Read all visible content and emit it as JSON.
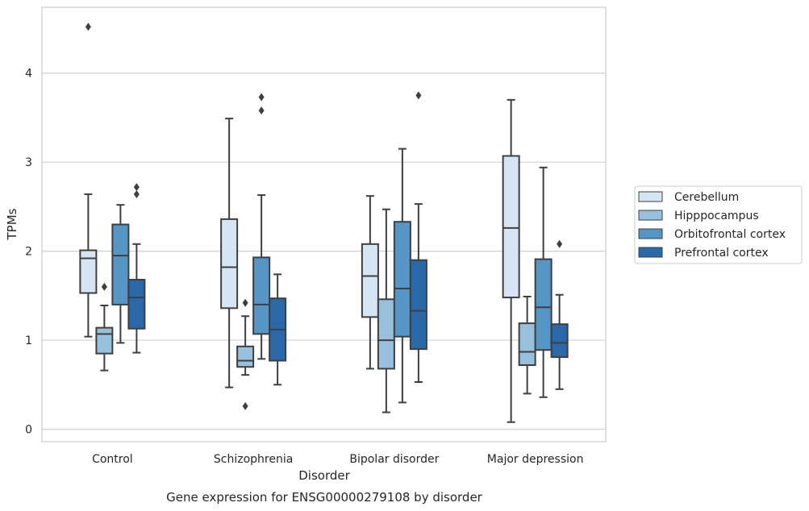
{
  "chart_data": {
    "type": "boxplot",
    "caption": "Gene expression for ENSG00000279108 by disorder",
    "xlabel": "Disorder",
    "ylabel": "TPMs",
    "ylim": [
      -0.14,
      4.74
    ],
    "yticks": [
      0,
      1,
      2,
      3,
      4
    ],
    "grid": true,
    "legend_position": "right",
    "categories": [
      "Control",
      "Schizophrenia",
      "Bipolar disorder",
      "Major depression"
    ],
    "series": [
      {
        "name": "Cerebellum",
        "color": "#d6e5f3",
        "boxes": [
          {
            "whisker_low": 1.04,
            "q1": 1.53,
            "median": 1.92,
            "q3": 2.01,
            "whisker_high": 2.64,
            "outliers": [
              4.52
            ]
          },
          {
            "whisker_low": 0.47,
            "q1": 1.36,
            "median": 1.82,
            "q3": 2.36,
            "whisker_high": 3.49,
            "outliers": []
          },
          {
            "whisker_low": 0.68,
            "q1": 1.26,
            "median": 1.72,
            "q3": 2.08,
            "whisker_high": 2.62,
            "outliers": []
          },
          {
            "whisker_low": 0.08,
            "q1": 1.48,
            "median": 2.26,
            "q3": 3.07,
            "whisker_high": 3.7,
            "outliers": []
          }
        ]
      },
      {
        "name": "Hipppocampus",
        "color": "#97c0dc",
        "boxes": [
          {
            "whisker_low": 0.66,
            "q1": 0.85,
            "median": 1.07,
            "q3": 1.14,
            "whisker_high": 1.39,
            "outliers": [
              1.6
            ]
          },
          {
            "whisker_low": 0.61,
            "q1": 0.7,
            "median": 0.77,
            "q3": 0.93,
            "whisker_high": 1.27,
            "outliers": [
              1.42,
              0.26
            ]
          },
          {
            "whisker_low": 0.19,
            "q1": 0.68,
            "median": 1.0,
            "q3": 1.46,
            "whisker_high": 2.47,
            "outliers": []
          },
          {
            "whisker_low": 0.4,
            "q1": 0.72,
            "median": 0.87,
            "q3": 1.19,
            "whisker_high": 1.49,
            "outliers": []
          }
        ]
      },
      {
        "name": "Orbitofrontal cortex",
        "color": "#5596c6",
        "boxes": [
          {
            "whisker_low": 0.97,
            "q1": 1.4,
            "median": 1.95,
            "q3": 2.3,
            "whisker_high": 2.52,
            "outliers": []
          },
          {
            "whisker_low": 0.79,
            "q1": 1.07,
            "median": 1.4,
            "q3": 1.93,
            "whisker_high": 2.63,
            "outliers": [
              3.73,
              3.58
            ]
          },
          {
            "whisker_low": 0.3,
            "q1": 1.04,
            "median": 1.58,
            "q3": 2.33,
            "whisker_high": 3.15,
            "outliers": []
          },
          {
            "whisker_low": 0.36,
            "q1": 0.89,
            "median": 1.37,
            "q3": 1.91,
            "whisker_high": 2.94,
            "outliers": []
          }
        ]
      },
      {
        "name": "Prefrontal cortex",
        "color": "#2a69a9",
        "boxes": [
          {
            "whisker_low": 0.86,
            "q1": 1.13,
            "median": 1.48,
            "q3": 1.68,
            "whisker_high": 2.08,
            "outliers": [
              2.72,
              2.64
            ]
          },
          {
            "whisker_low": 0.5,
            "q1": 0.77,
            "median": 1.12,
            "q3": 1.47,
            "whisker_high": 1.74,
            "outliers": []
          },
          {
            "whisker_low": 0.53,
            "q1": 0.9,
            "median": 1.33,
            "q3": 1.9,
            "whisker_high": 2.53,
            "outliers": [
              3.75
            ]
          },
          {
            "whisker_low": 0.45,
            "q1": 0.81,
            "median": 0.97,
            "q3": 1.18,
            "whisker_high": 1.51,
            "outliers": [
              2.08
            ]
          }
        ]
      }
    ]
  },
  "colors": {
    "grid": "#d0d0d0",
    "frame": "#cccccc",
    "stroke": "#3f3f3f"
  }
}
